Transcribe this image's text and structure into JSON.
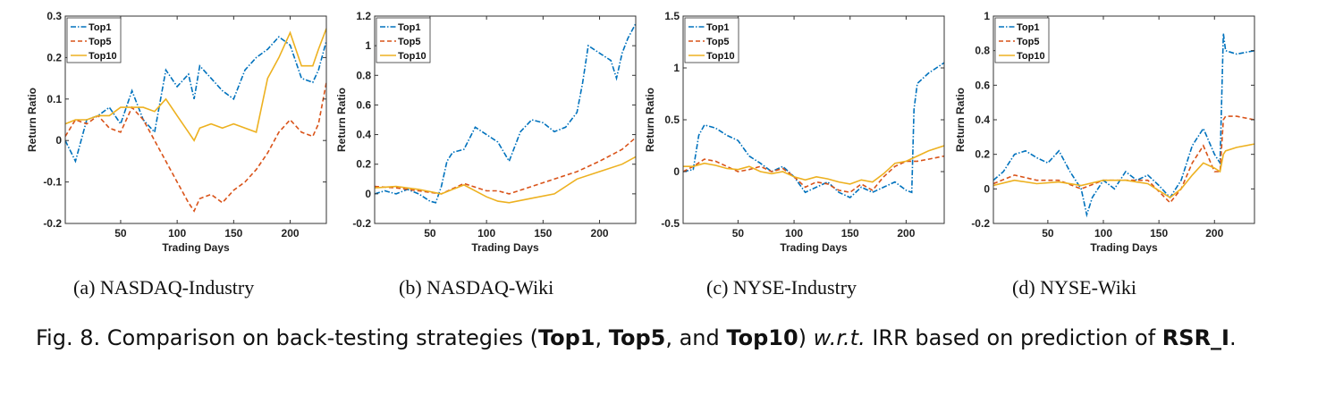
{
  "colors": {
    "top1": "#0072BD",
    "top5": "#D95319",
    "top10": "#EDB120"
  },
  "subcaptions": [
    "(a)  NASDAQ-Industry",
    "(b)  NASDAQ-Wiki",
    "(c)  NYSE-Industry",
    "(d)  NYSE-Wiki"
  ],
  "caption": {
    "prefix": "Fig. 8.  Comparison on back-testing strategies (",
    "s1": "Top1",
    "sep1": ", ",
    "s2": "Top5",
    "sep2": ", and ",
    "s3": "Top10",
    "mid": ") ",
    "wrt": "w.r.t.",
    "suffix": " IRR based on prediction of ",
    "model": "RSR_I",
    "end": "."
  },
  "chart_data": [
    {
      "type": "line",
      "xlabel": "Trading Days",
      "ylabel": "Return Ratio",
      "xlim": [
        1,
        232
      ],
      "ylim": [
        -0.2,
        0.3
      ],
      "xticks": [
        50,
        100,
        150,
        200
      ],
      "yticks": [
        -0.2,
        -0.1,
        0,
        0.1,
        0.2,
        0.3
      ],
      "legend_position": "top-left",
      "series": [
        {
          "name": "Top1",
          "x": [
            1,
            10,
            20,
            30,
            40,
            50,
            60,
            70,
            80,
            90,
            100,
            110,
            115,
            120,
            130,
            140,
            150,
            160,
            170,
            180,
            190,
            200,
            210,
            220,
            225,
            232
          ],
          "y": [
            0.0,
            -0.05,
            0.05,
            0.06,
            0.08,
            0.04,
            0.12,
            0.05,
            0.02,
            0.17,
            0.13,
            0.16,
            0.1,
            0.18,
            0.15,
            0.12,
            0.1,
            0.17,
            0.2,
            0.22,
            0.25,
            0.23,
            0.15,
            0.14,
            0.17,
            0.24
          ]
        },
        {
          "name": "Top5",
          "x": [
            1,
            10,
            20,
            30,
            40,
            50,
            60,
            70,
            80,
            90,
            100,
            110,
            115,
            120,
            130,
            140,
            150,
            160,
            170,
            180,
            190,
            200,
            210,
            220,
            225,
            232
          ],
          "y": [
            0.01,
            0.05,
            0.04,
            0.06,
            0.03,
            0.02,
            0.08,
            0.05,
            0.0,
            -0.05,
            -0.1,
            -0.15,
            -0.17,
            -0.14,
            -0.13,
            -0.15,
            -0.12,
            -0.1,
            -0.07,
            -0.03,
            0.02,
            0.05,
            0.02,
            0.01,
            0.04,
            0.14
          ]
        },
        {
          "name": "Top10",
          "x": [
            1,
            10,
            20,
            30,
            40,
            50,
            60,
            70,
            80,
            90,
            100,
            110,
            115,
            120,
            130,
            140,
            150,
            160,
            170,
            180,
            190,
            200,
            210,
            220,
            225,
            232
          ],
          "y": [
            0.04,
            0.05,
            0.05,
            0.06,
            0.06,
            0.08,
            0.08,
            0.08,
            0.07,
            0.1,
            0.06,
            0.02,
            0.0,
            0.03,
            0.04,
            0.03,
            0.04,
            0.03,
            0.02,
            0.15,
            0.2,
            0.26,
            0.18,
            0.18,
            0.22,
            0.27
          ]
        }
      ]
    },
    {
      "type": "line",
      "xlabel": "Trading Days",
      "ylabel": "Return Ratio",
      "xlim": [
        1,
        232
      ],
      "ylim": [
        -0.2,
        1.2
      ],
      "xticks": [
        50,
        100,
        150,
        200
      ],
      "yticks": [
        -0.2,
        0,
        0.2,
        0.4,
        0.6,
        0.8,
        1,
        1.2
      ],
      "legend_position": "top-left",
      "series": [
        {
          "name": "Top1",
          "x": [
            1,
            10,
            20,
            30,
            40,
            50,
            55,
            60,
            65,
            70,
            80,
            90,
            100,
            110,
            120,
            130,
            140,
            150,
            160,
            170,
            180,
            185,
            190,
            200,
            210,
            215,
            220,
            225,
            232
          ],
          "y": [
            0.0,
            0.02,
            0.0,
            0.03,
            0.0,
            -0.05,
            -0.06,
            0.05,
            0.22,
            0.28,
            0.3,
            0.45,
            0.4,
            0.35,
            0.22,
            0.42,
            0.5,
            0.48,
            0.42,
            0.45,
            0.55,
            0.75,
            1.0,
            0.95,
            0.9,
            0.78,
            0.95,
            1.05,
            1.15
          ]
        },
        {
          "name": "Top5",
          "x": [
            1,
            20,
            40,
            60,
            80,
            100,
            110,
            120,
            140,
            160,
            180,
            200,
            220,
            232
          ],
          "y": [
            0.05,
            0.04,
            0.02,
            0.0,
            0.07,
            0.02,
            0.02,
            0.0,
            0.05,
            0.1,
            0.15,
            0.22,
            0.3,
            0.38
          ]
        },
        {
          "name": "Top10",
          "x": [
            1,
            20,
            40,
            60,
            80,
            100,
            110,
            120,
            140,
            160,
            180,
            200,
            220,
            232
          ],
          "y": [
            0.04,
            0.05,
            0.03,
            0.0,
            0.06,
            -0.02,
            -0.05,
            -0.06,
            -0.03,
            0.0,
            0.1,
            0.15,
            0.2,
            0.25
          ]
        }
      ]
    },
    {
      "type": "line",
      "xlabel": "Trading Days",
      "ylabel": "Return Ratio",
      "xlim": [
        1,
        234
      ],
      "ylim": [
        -0.5,
        1.5
      ],
      "xticks": [
        50,
        100,
        150,
        200
      ],
      "yticks": [
        -0.5,
        0,
        0.5,
        1,
        1.5
      ],
      "legend_position": "top-left",
      "series": [
        {
          "name": "Top1",
          "x": [
            1,
            10,
            15,
            20,
            30,
            40,
            50,
            60,
            70,
            80,
            90,
            100,
            110,
            120,
            130,
            140,
            150,
            160,
            170,
            180,
            190,
            200,
            205,
            207,
            210,
            220,
            234
          ],
          "y": [
            0.0,
            0.02,
            0.35,
            0.45,
            0.42,
            0.35,
            0.3,
            0.15,
            0.08,
            0.0,
            0.05,
            -0.05,
            -0.2,
            -0.15,
            -0.1,
            -0.2,
            -0.25,
            -0.15,
            -0.2,
            -0.15,
            -0.1,
            -0.18,
            -0.2,
            0.6,
            0.85,
            0.95,
            1.05
          ]
        },
        {
          "name": "Top5",
          "x": [
            1,
            10,
            20,
            30,
            40,
            50,
            60,
            70,
            80,
            90,
            100,
            110,
            120,
            130,
            140,
            150,
            160,
            170,
            180,
            190,
            200,
            210,
            220,
            234
          ],
          "y": [
            0.0,
            0.05,
            0.12,
            0.1,
            0.05,
            0.0,
            0.02,
            0.05,
            0.0,
            0.03,
            -0.05,
            -0.15,
            -0.1,
            -0.12,
            -0.18,
            -0.2,
            -0.12,
            -0.18,
            -0.05,
            0.05,
            0.1,
            0.1,
            0.12,
            0.15
          ]
        },
        {
          "name": "Top10",
          "x": [
            1,
            10,
            20,
            30,
            40,
            50,
            60,
            70,
            80,
            90,
            100,
            110,
            120,
            130,
            140,
            150,
            160,
            170,
            180,
            190,
            200,
            210,
            220,
            234
          ],
          "y": [
            0.05,
            0.05,
            0.08,
            0.06,
            0.03,
            0.02,
            0.05,
            0.0,
            -0.02,
            0.0,
            -0.05,
            -0.08,
            -0.05,
            -0.07,
            -0.1,
            -0.12,
            -0.08,
            -0.1,
            -0.02,
            0.08,
            0.1,
            0.15,
            0.2,
            0.25
          ]
        }
      ]
    },
    {
      "type": "line",
      "xlabel": "Trading Days",
      "ylabel": "Return Ratio",
      "xlim": [
        1,
        236
      ],
      "ylim": [
        -0.2,
        1.0
      ],
      "xticks": [
        50,
        100,
        150,
        200
      ],
      "yticks": [
        -0.2,
        0,
        0.2,
        0.4,
        0.6,
        0.8,
        1
      ],
      "legend_position": "top-left",
      "series": [
        {
          "name": "Top1",
          "x": [
            1,
            10,
            20,
            30,
            40,
            50,
            60,
            70,
            75,
            80,
            85,
            90,
            100,
            110,
            120,
            130,
            140,
            150,
            160,
            170,
            180,
            190,
            200,
            205,
            208,
            210,
            220,
            236
          ],
          "y": [
            0.05,
            0.1,
            0.2,
            0.22,
            0.18,
            0.15,
            0.22,
            0.1,
            0.05,
            0.0,
            -0.15,
            -0.05,
            0.05,
            0.0,
            0.1,
            0.05,
            0.08,
            0.02,
            -0.05,
            0.05,
            0.25,
            0.35,
            0.2,
            0.15,
            0.9,
            0.8,
            0.78,
            0.8
          ]
        },
        {
          "name": "Top5",
          "x": [
            1,
            20,
            40,
            60,
            80,
            100,
            120,
            140,
            160,
            170,
            180,
            190,
            200,
            205,
            208,
            210,
            220,
            236
          ],
          "y": [
            0.03,
            0.08,
            0.05,
            0.05,
            0.0,
            0.05,
            0.05,
            0.05,
            -0.08,
            0.0,
            0.15,
            0.25,
            0.1,
            0.1,
            0.4,
            0.42,
            0.42,
            0.4
          ]
        },
        {
          "name": "Top10",
          "x": [
            1,
            20,
            40,
            60,
            80,
            100,
            120,
            140,
            160,
            170,
            180,
            190,
            200,
            205,
            208,
            210,
            220,
            236
          ],
          "y": [
            0.02,
            0.05,
            0.03,
            0.04,
            0.02,
            0.05,
            0.05,
            0.03,
            -0.05,
            0.0,
            0.08,
            0.15,
            0.12,
            0.1,
            0.2,
            0.22,
            0.24,
            0.26
          ]
        }
      ]
    }
  ]
}
